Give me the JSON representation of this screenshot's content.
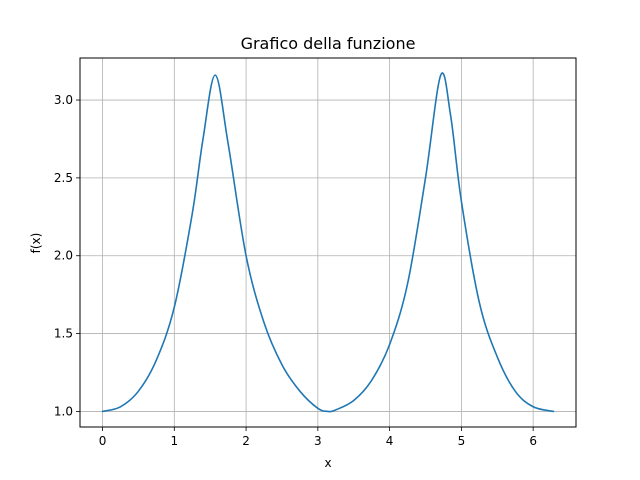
{
  "chart_data": {
    "type": "line",
    "title": "Grafico della funzione",
    "xlabel": "x",
    "ylabel": "f(x)",
    "xlim": [
      -0.314,
      6.597
    ],
    "ylim": [
      0.9,
      3.27
    ],
    "x_ticks": [
      0,
      1,
      2,
      3,
      4,
      5,
      6
    ],
    "x_tick_labels": [
      "0",
      "1",
      "2",
      "3",
      "4",
      "5",
      "6"
    ],
    "y_ticks": [
      1.0,
      1.5,
      2.0,
      2.5,
      3.0
    ],
    "y_tick_labels": [
      "1.0",
      "1.5",
      "2.0",
      "2.5",
      "3.0"
    ],
    "grid": true,
    "legend": "none",
    "line_color": "#1f77b4",
    "series": [
      {
        "x": [
          0,
          0.25,
          0.5,
          0.75,
          1.0,
          1.25,
          1.4,
          1.5708,
          1.75,
          2.0,
          2.25,
          2.5,
          2.75,
          3.0,
          3.1416,
          3.25,
          3.5,
          3.75,
          4.0,
          4.25,
          4.5,
          4.7124,
          4.85,
          5.0,
          5.25,
          5.5,
          5.75,
          6.0,
          6.2832
        ],
        "y": [
          1.0,
          1.03,
          1.13,
          1.33,
          1.67,
          2.27,
          2.75,
          3.16,
          2.72,
          2.0,
          1.57,
          1.3,
          1.13,
          1.02,
          1.0,
          1.01,
          1.07,
          1.2,
          1.43,
          1.82,
          2.5,
          3.16,
          2.9,
          2.35,
          1.7,
          1.35,
          1.13,
          1.03,
          1.0
        ]
      }
    ]
  }
}
